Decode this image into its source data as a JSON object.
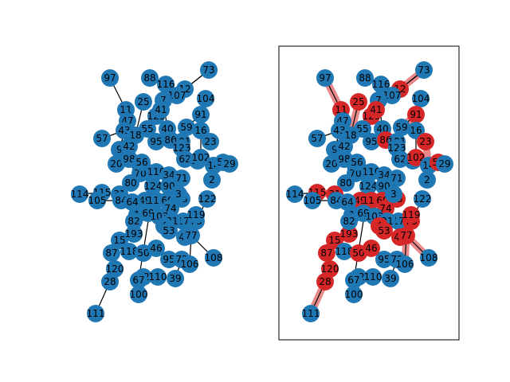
{
  "colors": {
    "node": "#1f77b4",
    "highlight_node": "#d62728",
    "highlight_edge": "#e8898a",
    "edge": "#000000",
    "frame": "#000000"
  },
  "graph": {
    "nodes": [
      "97",
      "88",
      "116",
      "12",
      "73",
      "107",
      "104",
      "11",
      "25",
      "7",
      "47",
      "125",
      "91",
      "43",
      "55",
      "40",
      "59",
      "16",
      "57",
      "18",
      "95",
      "86",
      "101",
      "23",
      "9",
      "42",
      "123",
      "20",
      "98",
      "62",
      "38",
      "102",
      "14",
      "52",
      "29",
      "6",
      "10",
      "110",
      "34",
      "71",
      "2",
      "70",
      "80",
      "124",
      "90",
      "114",
      "115",
      "31",
      "105",
      "84",
      "49",
      "113",
      "60",
      "33",
      "122",
      "64",
      "17",
      "74",
      "78",
      "119",
      "1",
      "69",
      "103",
      "21",
      "4",
      "53",
      "15",
      "193",
      "45",
      "77",
      "87",
      "118",
      "50",
      "95b",
      "108",
      "72",
      "106",
      "120",
      "46",
      "62b",
      "110b",
      "39",
      "28",
      "67",
      "100",
      "111",
      "82",
      "41",
      "56",
      "3"
    ],
    "edges": [
      [
        "97",
        "11"
      ],
      [
        "88",
        "116"
      ],
      [
        "73",
        "12"
      ],
      [
        "12",
        "107"
      ],
      [
        "11",
        "43"
      ],
      [
        "11",
        "47"
      ],
      [
        "111",
        "28"
      ],
      [
        "28",
        "120"
      ],
      [
        "87",
        "120"
      ],
      [
        "108",
        "77"
      ],
      [
        "39",
        "72"
      ],
      [
        "106",
        "77"
      ],
      [
        "73",
        "107"
      ],
      [
        "104",
        "91"
      ],
      [
        "91",
        "59"
      ],
      [
        "52",
        "29"
      ],
      [
        "14",
        "52"
      ],
      [
        "114",
        "115"
      ],
      [
        "115",
        "31"
      ],
      [
        "57",
        "43"
      ],
      [
        "25",
        "18"
      ],
      [
        "7",
        "40"
      ],
      [
        "47",
        "9"
      ],
      [
        "43",
        "20"
      ],
      [
        "59",
        "23"
      ],
      [
        "16",
        "102"
      ],
      [
        "62",
        "14"
      ],
      [
        "122",
        "78"
      ],
      [
        "119",
        "78"
      ],
      [
        "105",
        "84"
      ],
      [
        "100",
        "67"
      ],
      [
        "110",
        "67"
      ],
      [
        "46",
        "50"
      ],
      [
        "118",
        "15"
      ],
      [
        "53",
        "74"
      ],
      [
        "113",
        "69"
      ]
    ]
  },
  "left_panel": {
    "highlighted_nodes": [],
    "highlighted_edges": []
  },
  "right_panel": {
    "highlighted_nodes": [
      "11",
      "25",
      "12",
      "91",
      "23",
      "41",
      "125",
      "119",
      "78",
      "45",
      "77",
      "113",
      "15",
      "193",
      "46",
      "28",
      "87",
      "120",
      "86",
      "31",
      "115",
      "52",
      "102",
      "49",
      "33",
      "60",
      "74",
      "4",
      "53",
      "50"
    ],
    "highlighted_edges": [
      [
        "97",
        "11"
      ],
      [
        "73",
        "12"
      ],
      [
        "111",
        "28"
      ],
      [
        "108",
        "77"
      ],
      [
        "106",
        "77"
      ],
      [
        "12",
        "107"
      ],
      [
        "25",
        "18"
      ],
      [
        "91",
        "59"
      ],
      [
        "23",
        "14"
      ],
      [
        "119",
        "78"
      ],
      [
        "113",
        "69"
      ],
      [
        "46",
        "50"
      ],
      [
        "115",
        "31"
      ],
      [
        "45",
        "78"
      ],
      [
        "28",
        "120"
      ]
    ]
  }
}
